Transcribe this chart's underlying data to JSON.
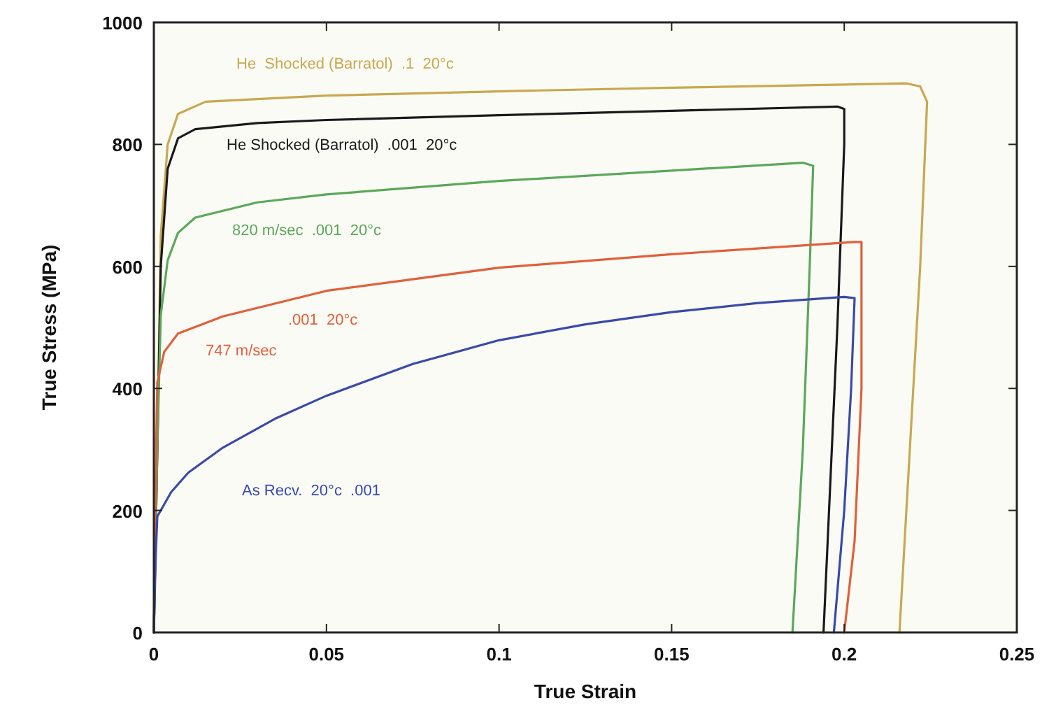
{
  "chart_data": {
    "type": "line",
    "xlabel": "True Strain",
    "ylabel": "True Stress (MPa)",
    "xlim": [
      0,
      0.25
    ],
    "ylim": [
      0,
      1000
    ],
    "xticks": [
      0,
      0.05,
      0.1,
      0.15,
      0.2,
      0.25
    ],
    "yticks": [
      0,
      200,
      400,
      600,
      800,
      1000
    ],
    "grid": false,
    "marker": "none",
    "line_style": "solid",
    "annotations": [
      ".001  20°c"
    ],
    "series": [
      {
        "name": "He  Shocked (Barratol)  .1  20°c",
        "color": "#c8a850",
        "x": [
          0,
          0.001,
          0.002,
          0.004,
          0.007,
          0.015,
          0.05,
          0.1,
          0.15,
          0.2,
          0.218,
          0.222,
          0.224,
          0.222,
          0.219,
          0.216
        ],
        "values": [
          0,
          300,
          650,
          800,
          850,
          870,
          880,
          887,
          893,
          898,
          900,
          895,
          870,
          600,
          300,
          0
        ]
      },
      {
        "name": "He Shocked (Barratol)  .001  20°c",
        "color": "#1a1a1a",
        "x": [
          0,
          0.001,
          0.002,
          0.004,
          0.007,
          0.012,
          0.03,
          0.05,
          0.1,
          0.15,
          0.198,
          0.2,
          0.2,
          0.198,
          0.196,
          0.194
        ],
        "values": [
          0,
          300,
          600,
          760,
          810,
          825,
          835,
          840,
          848,
          855,
          862,
          858,
          800,
          500,
          250,
          0
        ]
      },
      {
        "name": "820 m/sec  .001  20°c",
        "color": "#5aa85a",
        "x": [
          0,
          0.001,
          0.002,
          0.004,
          0.007,
          0.012,
          0.03,
          0.05,
          0.1,
          0.15,
          0.188,
          0.191,
          0.19,
          0.188,
          0.185
        ],
        "values": [
          0,
          300,
          520,
          610,
          655,
          680,
          705,
          718,
          740,
          757,
          770,
          765,
          600,
          300,
          0
        ]
      },
      {
        "name": "747 m/sec",
        "color": "#e0603a",
        "x": [
          0,
          0.0005,
          0.001,
          0.003,
          0.007,
          0.02,
          0.05,
          0.1,
          0.15,
          0.203,
          0.205,
          0.205,
          0.203,
          0.2
        ],
        "values": [
          0,
          250,
          410,
          460,
          490,
          518,
          560,
          598,
          620,
          640,
          640,
          400,
          150,
          0
        ]
      },
      {
        "name": "As Recv.  20°c  .001",
        "color": "#3a4aa8",
        "x": [
          0,
          0.0005,
          0.001,
          0.005,
          0.01,
          0.02,
          0.035,
          0.05,
          0.075,
          0.1,
          0.125,
          0.15,
          0.175,
          0.2,
          0.203,
          0.202,
          0.2,
          0.197
        ],
        "values": [
          0,
          120,
          190,
          230,
          262,
          303,
          350,
          388,
          440,
          479,
          505,
          525,
          540,
          550,
          548,
          400,
          200,
          0
        ]
      }
    ]
  }
}
